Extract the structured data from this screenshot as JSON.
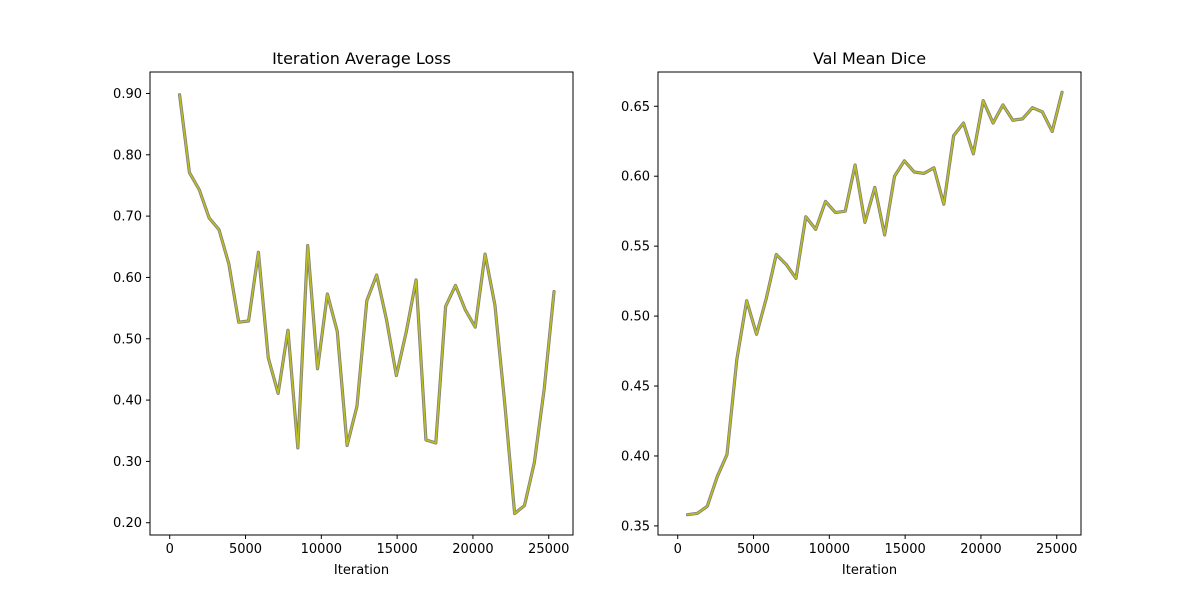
{
  "chart_data": [
    {
      "type": "line",
      "title": "Iteration Average Loss",
      "xlabel": "Iteration",
      "ylabel": "",
      "xlim": [
        -1300,
        26600
      ],
      "ylim": [
        0.18,
        0.935
      ],
      "xticks": [
        0,
        5000,
        10000,
        15000,
        20000,
        25000
      ],
      "yticks": [
        0.2,
        0.3,
        0.4,
        0.5,
        0.6,
        0.7,
        0.8,
        0.9
      ],
      "grid": false,
      "color": "#bcbd22",
      "series": [
        {
          "x": [
            650,
            1300,
            1950,
            2600,
            3250,
            3900,
            4550,
            5200,
            5850,
            6500,
            7150,
            7800,
            8450,
            9100,
            9750,
            10400,
            11050,
            11700,
            12350,
            13000,
            13650,
            14300,
            14950,
            15600,
            16250,
            16900,
            17550,
            18200,
            18850,
            19500,
            20150,
            20800,
            21450,
            22100,
            22750,
            23400,
            24050,
            24700,
            25350
          ],
          "y": [
            0.898,
            0.771,
            0.743,
            0.697,
            0.678,
            0.622,
            0.527,
            0.529,
            0.641,
            0.469,
            0.411,
            0.514,
            0.322,
            0.652,
            0.451,
            0.573,
            0.512,
            0.326,
            0.39,
            0.562,
            0.604,
            0.531,
            0.44,
            0.511,
            0.596,
            0.335,
            0.33,
            0.553,
            0.587,
            0.547,
            0.519,
            0.638,
            0.555,
            0.394,
            0.215,
            0.228,
            0.298,
            0.418,
            0.577
          ]
        }
      ]
    },
    {
      "type": "line",
      "title": "Val Mean Dice",
      "xlabel": "Iteration",
      "ylabel": "",
      "xlim": [
        -1300,
        26600
      ],
      "ylim": [
        0.3435,
        0.6745
      ],
      "xticks": [
        0,
        5000,
        10000,
        15000,
        20000,
        25000
      ],
      "yticks": [
        0.35,
        0.4,
        0.45,
        0.5,
        0.55,
        0.6,
        0.65
      ],
      "grid": false,
      "color": "#bcbd22",
      "series": [
        {
          "x": [
            650,
            1300,
            1950,
            2600,
            3250,
            3900,
            4550,
            5200,
            5850,
            6500,
            7150,
            7800,
            8450,
            9100,
            9750,
            10400,
            11050,
            11700,
            12350,
            13000,
            13650,
            14300,
            14950,
            15600,
            16250,
            16900,
            17550,
            18200,
            18850,
            19500,
            20150,
            20800,
            21450,
            22100,
            22750,
            23400,
            24050,
            24700,
            25350
          ],
          "y": [
            0.358,
            0.359,
            0.364,
            0.385,
            0.401,
            0.469,
            0.511,
            0.487,
            0.513,
            0.544,
            0.537,
            0.527,
            0.571,
            0.562,
            0.582,
            0.574,
            0.575,
            0.608,
            0.567,
            0.592,
            0.558,
            0.6,
            0.611,
            0.603,
            0.602,
            0.606,
            0.58,
            0.629,
            0.638,
            0.616,
            0.654,
            0.638,
            0.651,
            0.64,
            0.641,
            0.649,
            0.646,
            0.632,
            0.66
          ]
        }
      ]
    }
  ]
}
